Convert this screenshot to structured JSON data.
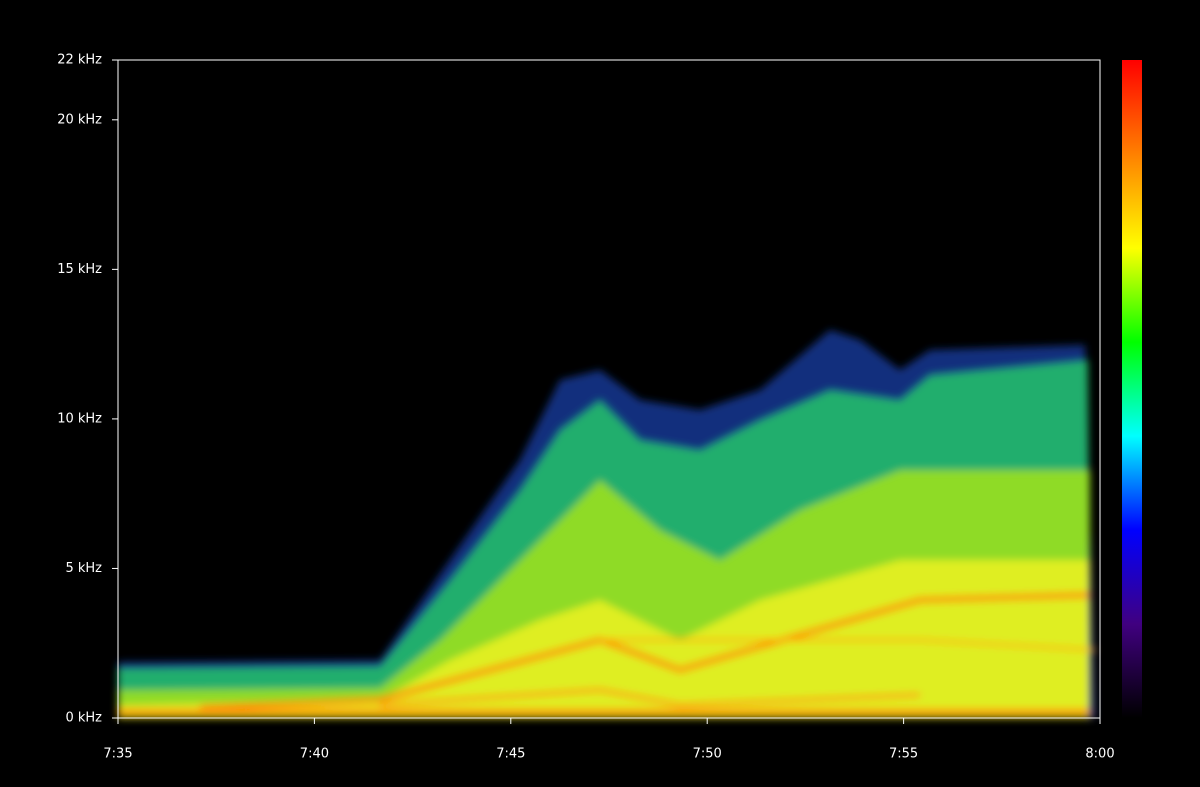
{
  "chart_data": {
    "type": "spectrogram",
    "xlim": [
      455,
      480
    ],
    "xticks": [
      {
        "value": 455,
        "label": "7:35"
      },
      {
        "value": 460,
        "label": "7:40"
      },
      {
        "value": 465,
        "label": "7:45"
      },
      {
        "value": 470,
        "label": "7:50"
      },
      {
        "value": 475,
        "label": "7:55"
      },
      {
        "value": 480,
        "label": "8:00"
      }
    ],
    "ylim": [
      0,
      22
    ],
    "yticks": [
      {
        "value": 0,
        "label": "0 kHz"
      },
      {
        "value": 5,
        "label": "5 kHz"
      },
      {
        "value": 10,
        "label": "10 kHz"
      },
      {
        "value": 15,
        "label": "15 kHz"
      },
      {
        "value": 20,
        "label": "20 kHz"
      },
      {
        "value": 22,
        "label": "22 kHz"
      }
    ],
    "colormap": [
      "#ff0000",
      "#ff8000",
      "#ffff00",
      "#00ff00",
      "#00ffff",
      "#0000ff",
      "#400080",
      "#000000"
    ]
  }
}
